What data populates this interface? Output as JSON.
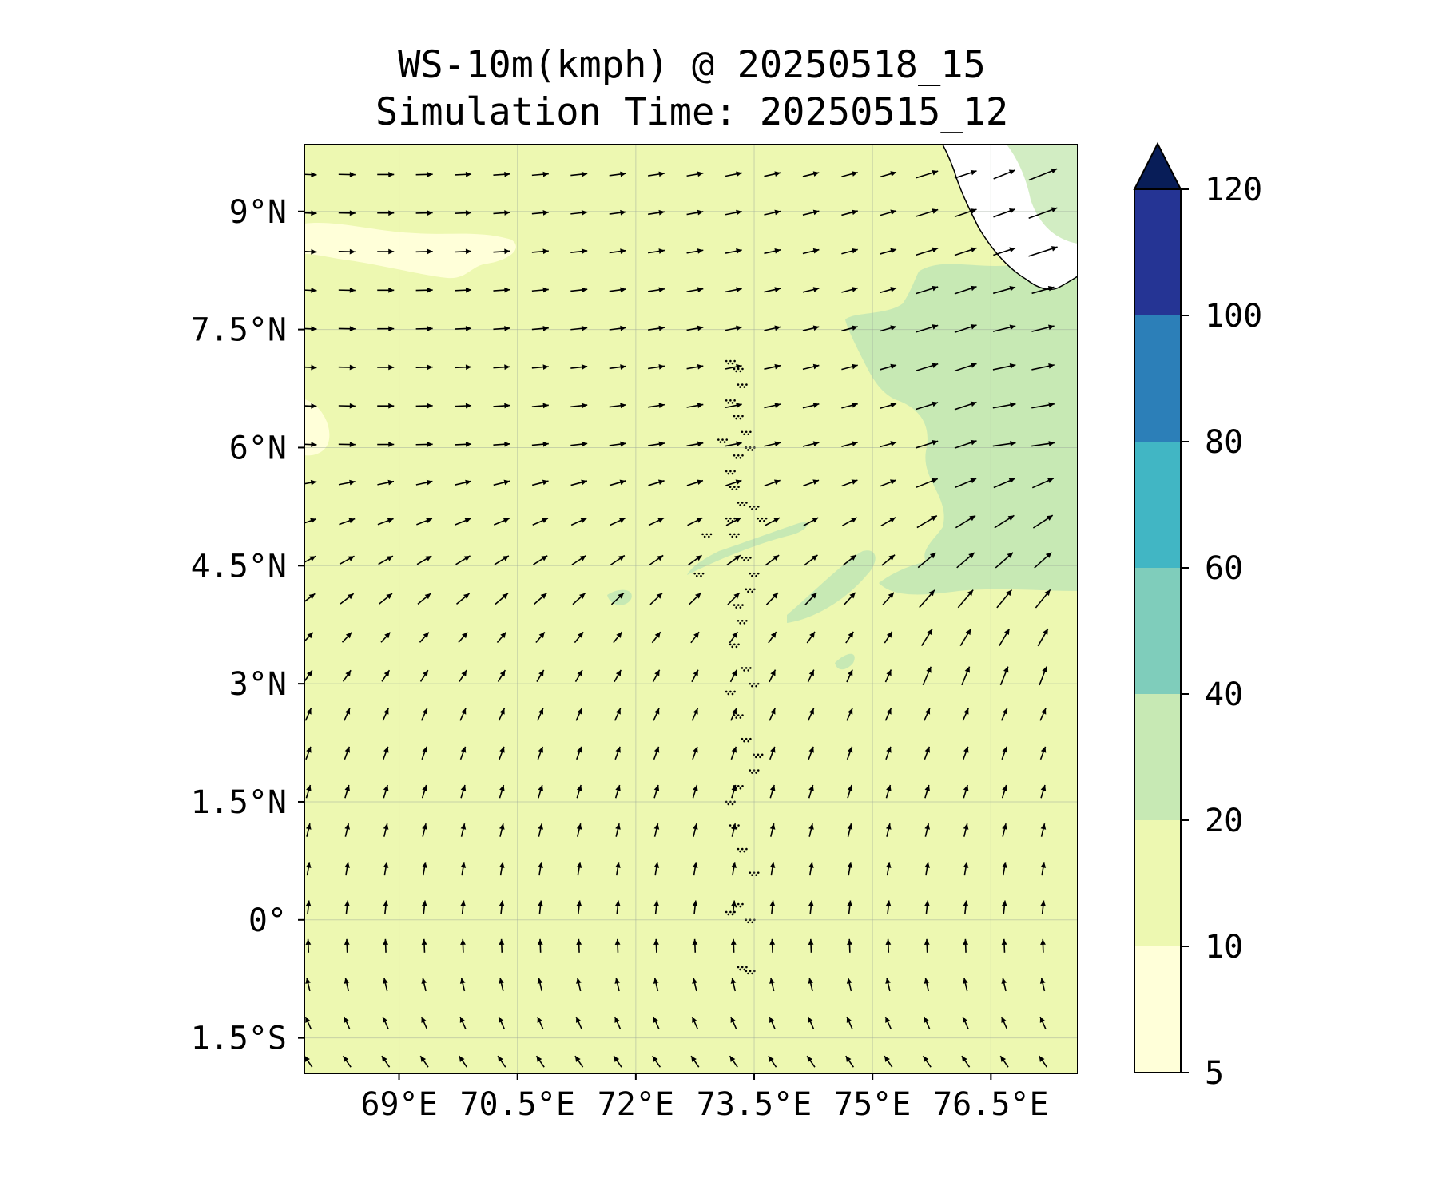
{
  "title": {
    "line1": "WS-10m(kmph) @ 20250518_15",
    "line2": "Simulation Time: 20250515_12"
  },
  "map": {
    "projection": "lat-lon",
    "lon_range": [
      67.8,
      77.6
    ],
    "lat_range": [
      -1.95,
      9.85
    ],
    "land_region": "southwest tip of India (top-right corner)",
    "islands": "Lakshadweep / Maldives atoll chain near 73.3E-73.6E",
    "grid": true,
    "lat_ticks": [
      {
        "value": 9,
        "label": "9°N"
      },
      {
        "value": 7.5,
        "label": "7.5°N"
      },
      {
        "value": 6,
        "label": "6°N"
      },
      {
        "value": 4.5,
        "label": "4.5°N"
      },
      {
        "value": 3,
        "label": "3°N"
      },
      {
        "value": 1.5,
        "label": "1.5°N"
      },
      {
        "value": 0,
        "label": "0°"
      },
      {
        "value": -1.5,
        "label": "1.5°S"
      }
    ],
    "lon_ticks": [
      {
        "value": 69,
        "label": "69°E"
      },
      {
        "value": 70.5,
        "label": "70.5°E"
      },
      {
        "value": 72,
        "label": "72°E"
      },
      {
        "value": 73.5,
        "label": "73.5°E"
      },
      {
        "value": 75,
        "label": "75°E"
      },
      {
        "value": 76.5,
        "label": "76.5°E"
      }
    ],
    "vector_field": {
      "lon_start": 67.85,
      "lat_start": -1.8,
      "spacing_deg": 0.49,
      "rows": 24,
      "cols": 20,
      "color": "#000000",
      "pattern": "westerly north of ~6N turning to southwesterly, southerly near equator, south-southeasterly south of equator"
    }
  },
  "colorbar": {
    "levels": [
      5,
      10,
      20,
      40,
      60,
      80,
      100,
      120
    ],
    "tick_labels": [
      "5",
      "10",
      "20",
      "40",
      "60",
      "80",
      "100",
      "120"
    ],
    "colors": [
      "#ffffd9",
      "#edf8b1",
      "#c7e9b4",
      "#7fcdbb",
      "#41b6c4",
      "#2c7fb8",
      "#253494"
    ],
    "extend_color": "#081d58",
    "extend": "max"
  }
}
